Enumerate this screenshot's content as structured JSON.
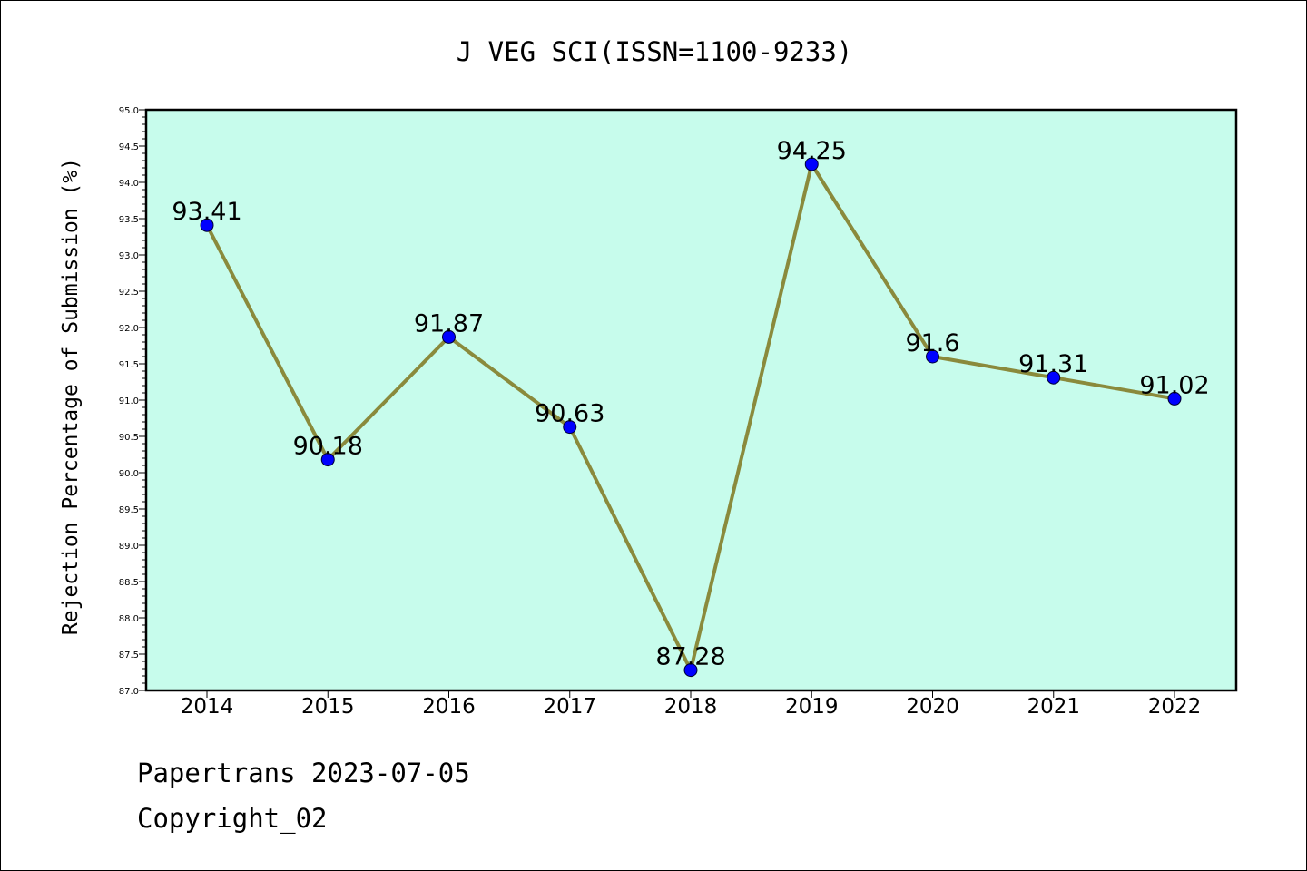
{
  "colors": {
    "plot_background": "#c7fcec",
    "line": "#8a8a3c",
    "marker": "#0000ff",
    "frame": "#000000"
  },
  "chart_data": {
    "type": "line",
    "title": "J VEG SCI(ISSN=1100-9233)",
    "xlabel": "",
    "ylabel": "Rejection Percentage of Submission (%)",
    "categories": [
      "2014",
      "2015",
      "2016",
      "2017",
      "2018",
      "2019",
      "2020",
      "2021",
      "2022"
    ],
    "series": [
      {
        "values": [
          93.41,
          90.18,
          91.87,
          90.63,
          87.28,
          94.25,
          91.6,
          91.31,
          91.02
        ]
      }
    ],
    "data_labels": [
      "93.41",
      "90.18",
      "91.87",
      "90.63",
      "87.28",
      "94.25",
      "91.6",
      "91.31",
      "91.02"
    ],
    "ylim": [
      87.0,
      95.0
    ],
    "ytick_labels": [
      "87.0",
      "87.5",
      "88.0",
      "88.5",
      "89.0",
      "89.5",
      "90.0",
      "90.5",
      "91.0",
      "91.5",
      "92.0",
      "92.5",
      "93.0",
      "93.5",
      "94.0",
      "94.5",
      "95.0"
    ],
    "grid": false,
    "legend": "none"
  },
  "footer": {
    "line1": "Papertrans 2023-07-05",
    "line2": "Copyright_02"
  }
}
